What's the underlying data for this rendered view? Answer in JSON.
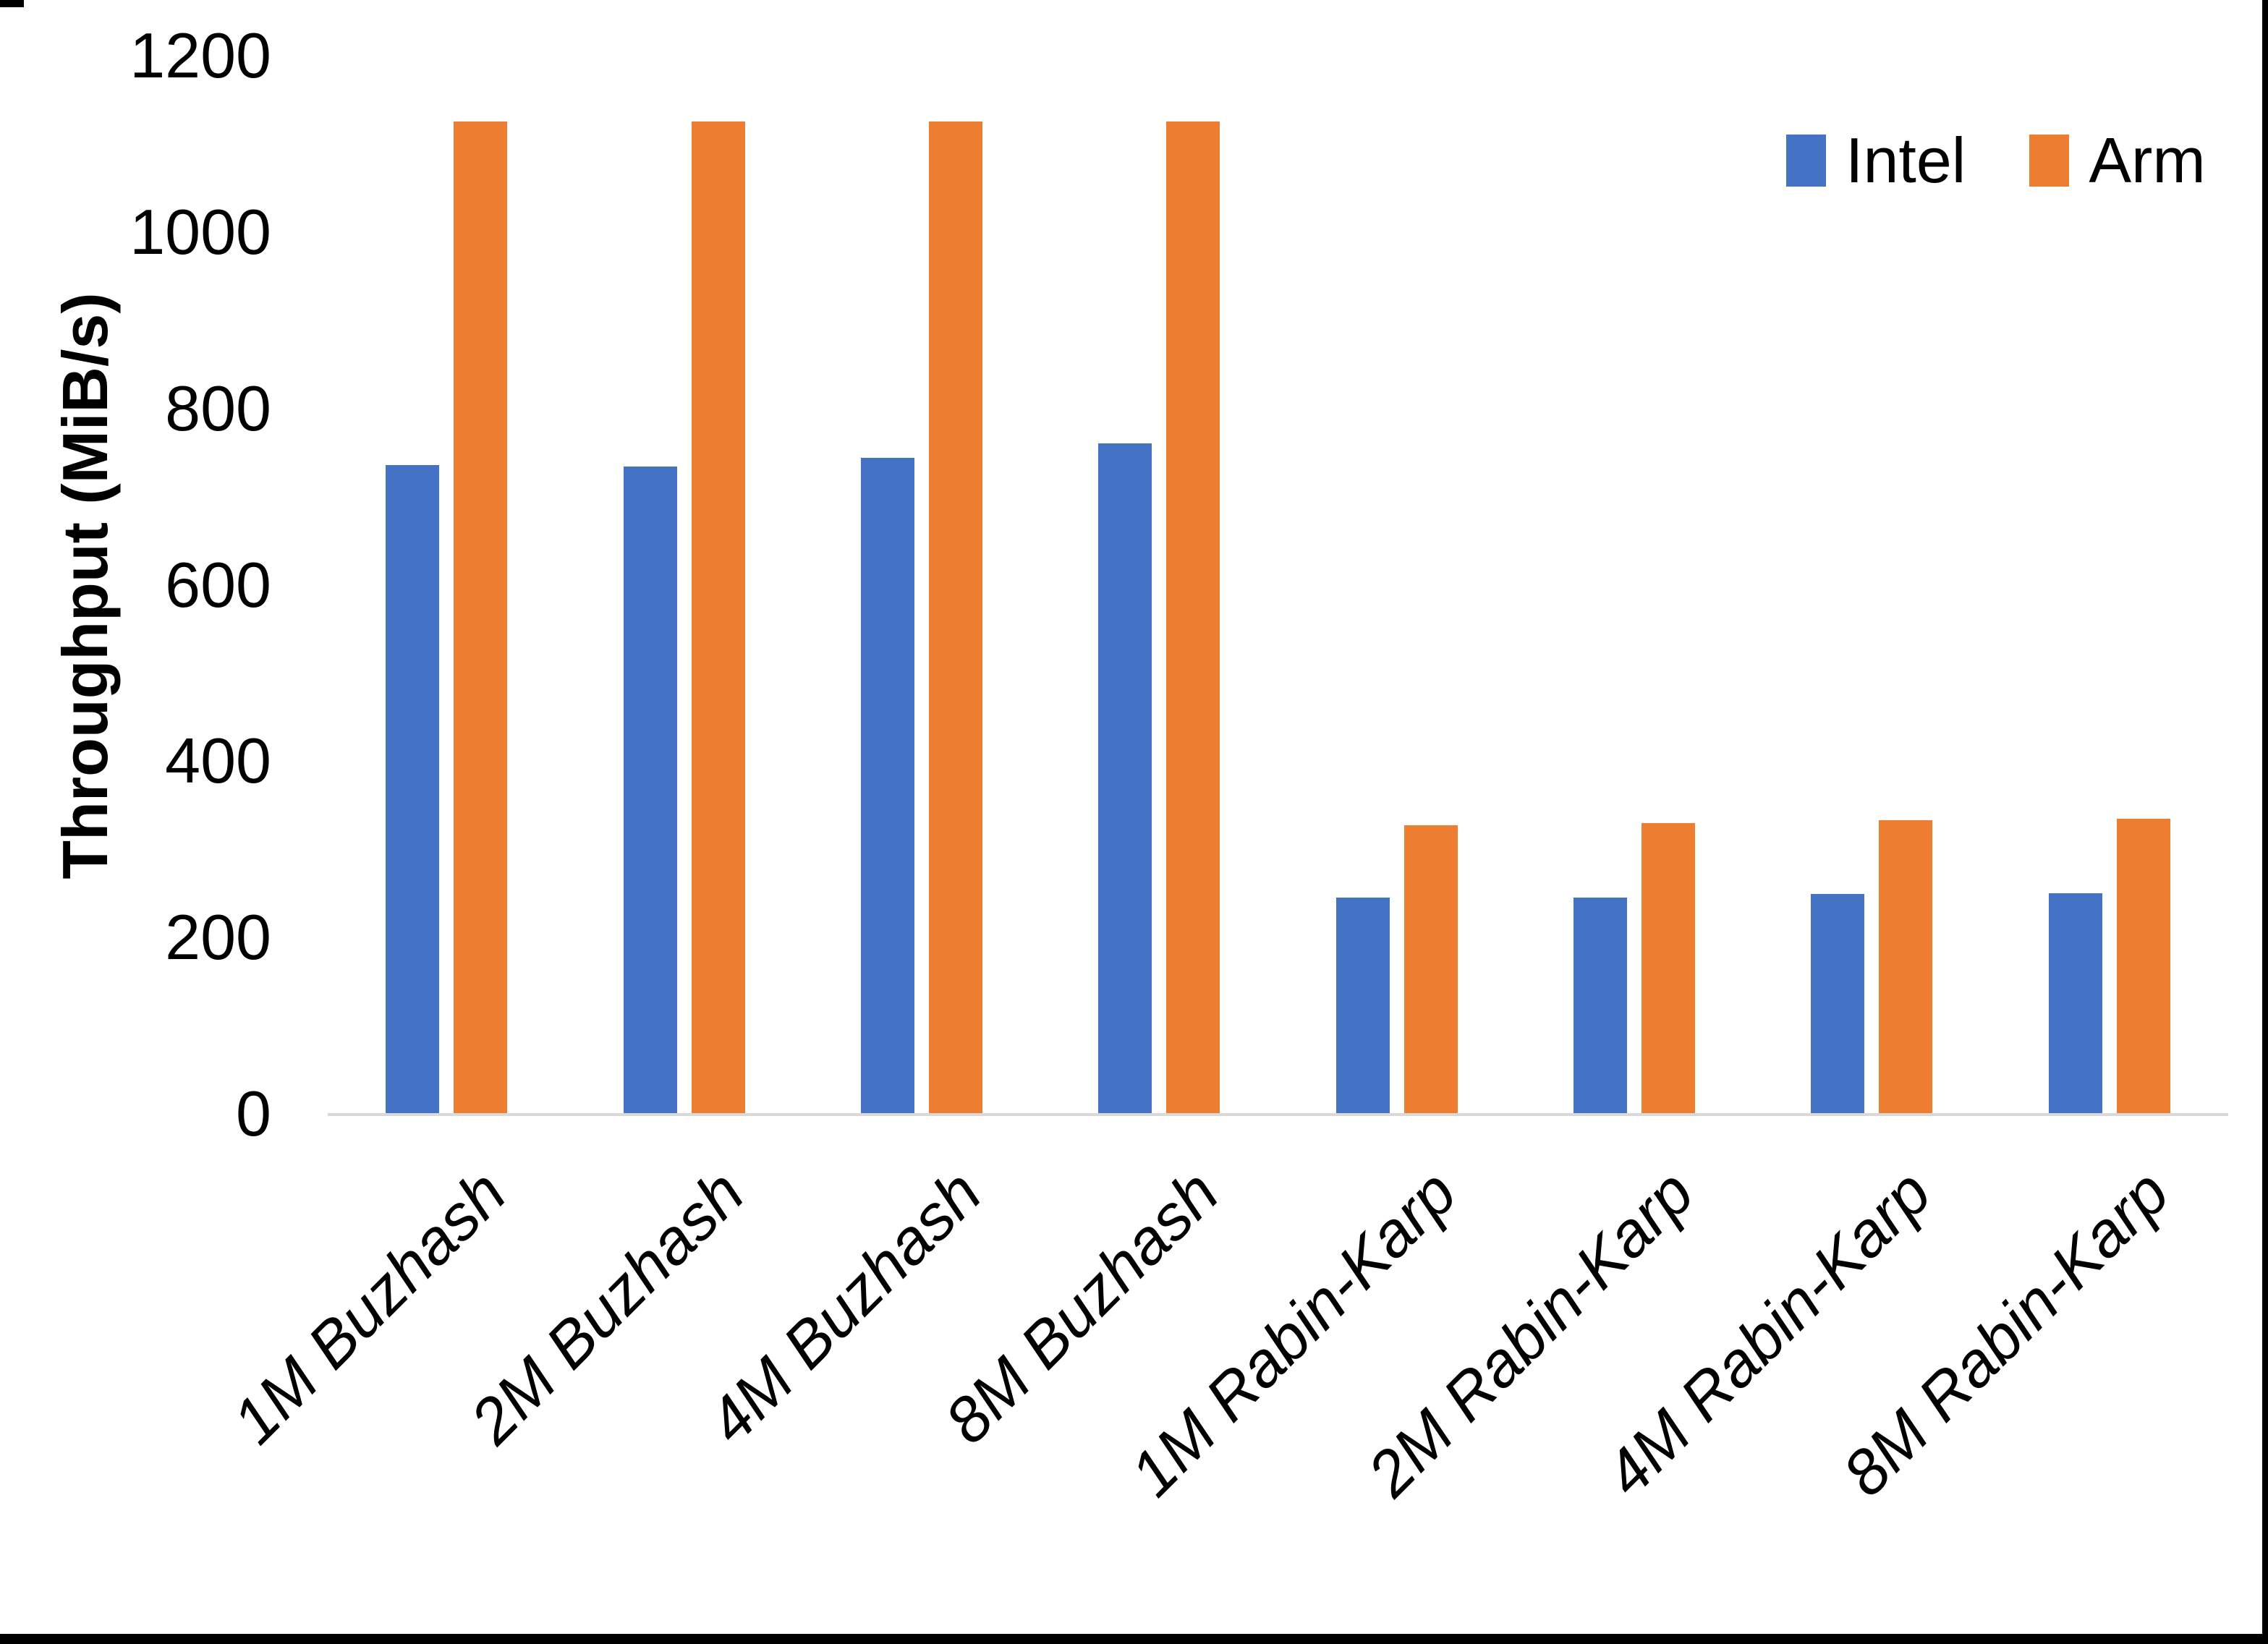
{
  "chart_data": {
    "type": "bar",
    "title": "",
    "xlabel": "",
    "ylabel": "Throughput (MiB/s)",
    "ylim": [
      0,
      1200
    ],
    "yticks": [
      0,
      200,
      400,
      600,
      800,
      1000,
      1200
    ],
    "grid": false,
    "legend_position": "top-right",
    "axis_line_color": "#D9D9D9",
    "categories": [
      "1M Buzhash",
      "2M Buzhash",
      "4M Buzhash",
      "8M Buzhash",
      "1M Rabin-Karp",
      "2M Rabin-Karp",
      "4M Rabin-Karp",
      "8M Rabin-Karp"
    ],
    "series": [
      {
        "name": "Intel",
        "color": "#4472C4",
        "values": [
          736,
          734,
          744,
          760,
          245,
          245,
          249,
          250
        ]
      },
      {
        "name": "Arm",
        "color": "#ED7D31",
        "values": [
          1125,
          1125,
          1125,
          1125,
          327,
          330,
          333,
          335
        ]
      }
    ]
  }
}
